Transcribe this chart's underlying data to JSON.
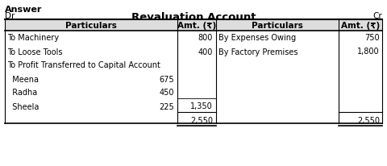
{
  "title": "Revaluation Account",
  "dr": "Dr",
  "cr": "Cr",
  "answer_label": "Answer",
  "headers_left": [
    "Particulars",
    "Amt. (₹)"
  ],
  "headers_right": [
    "Particulars",
    "Amt. (₹)"
  ],
  "left_rows": [
    {
      "particular": "To Machinery",
      "sub_amt": "",
      "amt": "800"
    },
    {
      "particular": "To Loose Tools",
      "sub_amt": "",
      "amt": "400"
    },
    {
      "particular": "To Profit Transferred to Capital Account",
      "sub_amt": "",
      "amt": ""
    },
    {
      "particular": "  Meena",
      "sub_amt": "675",
      "amt": ""
    },
    {
      "particular": "  Radha",
      "sub_amt": "450",
      "amt": ""
    },
    {
      "particular": "  Sheela",
      "sub_amt": "225",
      "amt": "1,350"
    },
    {
      "particular": "",
      "sub_amt": "",
      "amt": "2,550"
    }
  ],
  "right_rows": [
    {
      "particular": "By Expenses Owing",
      "amt": "750"
    },
    {
      "particular": "By Factory Premises",
      "amt": "1,800"
    },
    {
      "particular": "",
      "amt": ""
    },
    {
      "particular": "",
      "amt": ""
    },
    {
      "particular": "",
      "amt": ""
    },
    {
      "particular": "",
      "amt": ""
    },
    {
      "particular": "",
      "amt": "2,550"
    }
  ],
  "bg_color": "#ffffff",
  "line_color": "#000000",
  "font_size": 7.0,
  "header_font_size": 7.5,
  "title_font_size": 9.5
}
